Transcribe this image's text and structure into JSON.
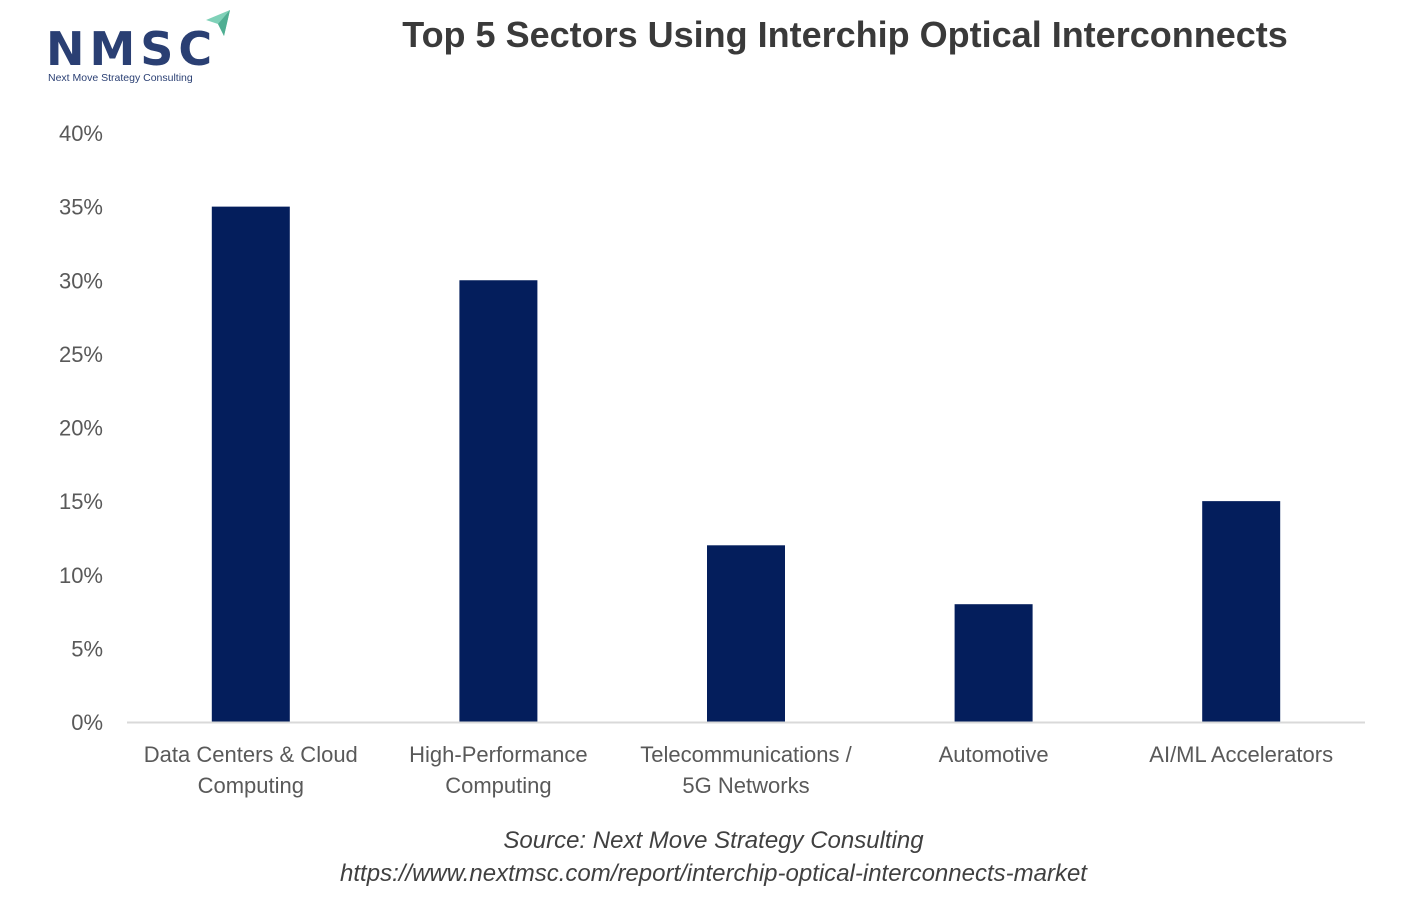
{
  "logo": {
    "wordmark": "NMSC",
    "tagline": "Next Move Strategy Consulting"
  },
  "chart_data": {
    "type": "bar",
    "title": "Top 5 Sectors Using Interchip Optical Interconnects",
    "categories": [
      [
        "Data Centers & Cloud",
        "Computing"
      ],
      [
        "High-Performance",
        "Computing"
      ],
      [
        "Telecommunications /",
        "5G Networks"
      ],
      [
        "Automotive"
      ],
      [
        "AI/ML Accelerators"
      ]
    ],
    "values": [
      35,
      30,
      12,
      8,
      15
    ],
    "ylim": [
      0,
      40
    ],
    "yticks": [
      0,
      5,
      10,
      15,
      20,
      25,
      30,
      35,
      40
    ],
    "ytick_labels": [
      "0%",
      "5%",
      "10%",
      "15%",
      "20%",
      "25%",
      "30%",
      "35%",
      "40%"
    ],
    "xlabel": "",
    "ylabel": "",
    "grid": false,
    "legend": "none",
    "bar_color": "#041e5c"
  },
  "source": {
    "line1": "Source: Next Move Strategy Consulting",
    "line2": "https://www.nextmsc.com/report/interchip-optical-interconnects-market"
  }
}
